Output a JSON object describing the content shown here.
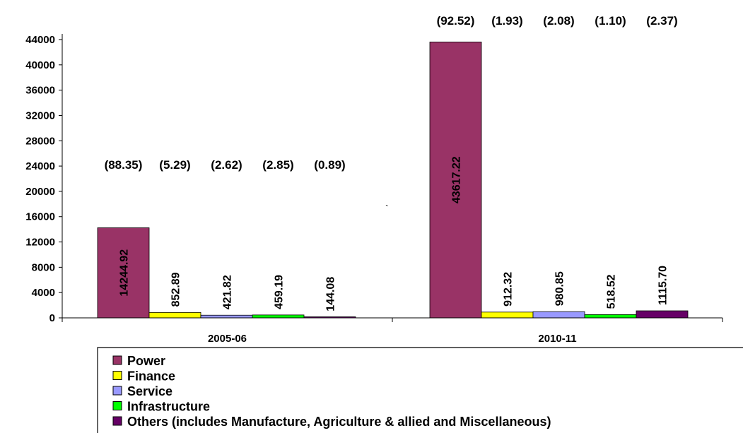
{
  "chart_data": {
    "type": "bar",
    "title": "",
    "xlabel": "",
    "ylabel": "",
    "ylim": [
      0,
      44000
    ],
    "yticks": [
      0,
      4000,
      8000,
      12000,
      16000,
      20000,
      24000,
      28000,
      32000,
      36000,
      40000,
      44000
    ],
    "ytick_labels": [
      "0",
      "4000",
      "8000",
      "12000",
      "16000",
      "20000",
      "24000",
      "28000",
      "32000",
      "36000",
      "40000",
      "44000"
    ],
    "categories": [
      "2005-06",
      "2010-11"
    ],
    "series": [
      {
        "name": "Power",
        "color": "#993366",
        "values": [
          14244.92,
          43617.22
        ],
        "labels": [
          "14244.92",
          "43617.22"
        ],
        "shares": [
          "(88.35)",
          "(92.52)"
        ]
      },
      {
        "name": "Finance",
        "color": "#FFFF00",
        "values": [
          852.89,
          912.32
        ],
        "labels": [
          "852.89",
          "912.32"
        ],
        "shares": [
          "(5.29)",
          "(1.93)"
        ]
      },
      {
        "name": "Service",
        "color": "#9999FF",
        "values": [
          421.82,
          980.85
        ],
        "labels": [
          "421.82",
          "980.85"
        ],
        "shares": [
          "(2.62)",
          "(2.08)"
        ]
      },
      {
        "name": "Infrastructure",
        "color": "#00FF00",
        "values": [
          459.19,
          518.52
        ],
        "labels": [
          "459.19",
          "518.52"
        ],
        "shares": [
          "(2.85)",
          "(1.10)"
        ]
      },
      {
        "name": "Others (includes Manufacture, Agriculture & allied and Miscellaneous)",
        "color": "#660066",
        "values": [
          144.08,
          1115.7
        ],
        "labels": [
          "144.08",
          "1115.70"
        ],
        "shares": [
          "(0.89)",
          "(2.37)"
        ]
      }
    ],
    "grid": false,
    "legend_position": "bottom"
  },
  "stray_mark": "`"
}
